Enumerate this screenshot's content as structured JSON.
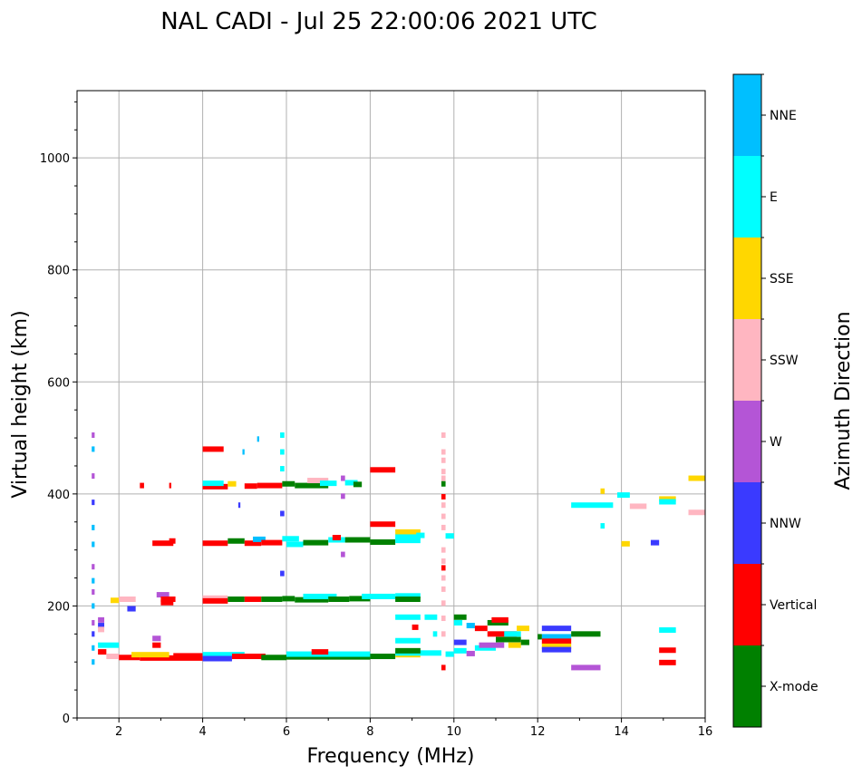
{
  "chart_data": {
    "type": "scatter",
    "title": "NAL CADI - Jul 25 22:00:06 2021 UTC",
    "xlabel": "Frequency (MHz)",
    "ylabel": "Virtual height (km)",
    "xlim": [
      1,
      16
    ],
    "ylim": [
      0,
      1120
    ],
    "xticks": [
      "2",
      "4",
      "6",
      "8",
      "10",
      "12",
      "14",
      "16"
    ],
    "yticks": [
      "0",
      "200",
      "400",
      "600",
      "800",
      "1000"
    ],
    "grid": true,
    "colorbar": {
      "label": "Azimuth Direction",
      "categories": [
        "X-mode",
        "Vertical",
        "NNW",
        "W",
        "SSW",
        "SSE",
        "E",
        "NNE"
      ],
      "colors": [
        "#008000",
        "#ff0000",
        "#3a3aff",
        "#b455d6",
        "#ffb6c1",
        "#ffd700",
        "#00ffff",
        "#00bfff"
      ]
    },
    "segments_note": "each echo: [freq_start_MHz, freq_end_MHz, virtual_height_km, category_index]",
    "echoes": [
      [
        4.0,
        4.5,
        480,
        1
      ],
      [
        4.0,
        4.6,
        413,
        1
      ],
      [
        4.0,
        4.5,
        419,
        6
      ],
      [
        4.6,
        4.8,
        418,
        5
      ],
      [
        5.0,
        5.3,
        414,
        1
      ],
      [
        5.3,
        5.9,
        415,
        1
      ],
      [
        5.9,
        6.2,
        418,
        0
      ],
      [
        6.2,
        7.0,
        415,
        0
      ],
      [
        6.5,
        7.0,
        424,
        4
      ],
      [
        6.8,
        7.2,
        419,
        6
      ],
      [
        7.4,
        7.7,
        420,
        6
      ],
      [
        7.6,
        7.8,
        417,
        0
      ],
      [
        8.0,
        8.6,
        443,
        1
      ],
      [
        2.5,
        2.6,
        415,
        1
      ],
      [
        3.2,
        3.25,
        415,
        1
      ],
      [
        2.8,
        3.3,
        312,
        1
      ],
      [
        3.2,
        3.35,
        316,
        1
      ],
      [
        4.0,
        4.6,
        312,
        1
      ],
      [
        4.6,
        5.0,
        316,
        0
      ],
      [
        5.0,
        5.4,
        312,
        1
      ],
      [
        5.2,
        5.5,
        319,
        7
      ],
      [
        5.4,
        5.9,
        313,
        1
      ],
      [
        5.9,
        6.3,
        320,
        6
      ],
      [
        6.0,
        6.4,
        310,
        6
      ],
      [
        6.4,
        7.0,
        313,
        0
      ],
      [
        7.0,
        7.4,
        318,
        6
      ],
      [
        7.1,
        7.3,
        322,
        1
      ],
      [
        7.4,
        8.0,
        318,
        0
      ],
      [
        8.0,
        8.6,
        314,
        0
      ],
      [
        8.0,
        8.6,
        346,
        1
      ],
      [
        8.6,
        9.2,
        332,
        5
      ],
      [
        8.6,
        9.2,
        323,
        6
      ],
      [
        8.6,
        9.2,
        317,
        6
      ],
      [
        9.1,
        9.3,
        326,
        6
      ],
      [
        9.8,
        10.0,
        325,
        6
      ],
      [
        1.8,
        2.0,
        210,
        5
      ],
      [
        2.0,
        2.4,
        212,
        4
      ],
      [
        2.9,
        3.2,
        220,
        3
      ],
      [
        3.0,
        3.35,
        212,
        1
      ],
      [
        3.0,
        3.3,
        206,
        1
      ],
      [
        4.0,
        4.6,
        214,
        4
      ],
      [
        4.0,
        4.6,
        209,
        1
      ],
      [
        4.6,
        5.0,
        212,
        0
      ],
      [
        5.0,
        5.4,
        212,
        1
      ],
      [
        5.4,
        5.9,
        212,
        0
      ],
      [
        5.9,
        6.2,
        213,
        0
      ],
      [
        6.2,
        7.0,
        211,
        0
      ],
      [
        6.4,
        7.2,
        217,
        6
      ],
      [
        7.0,
        7.5,
        212,
        0
      ],
      [
        7.5,
        8.0,
        213,
        0
      ],
      [
        7.8,
        8.6,
        217,
        6
      ],
      [
        8.6,
        9.2,
        218,
        6
      ],
      [
        8.6,
        9.2,
        212,
        0
      ],
      [
        1.5,
        2.0,
        130,
        6
      ],
      [
        1.5,
        1.65,
        175,
        3
      ],
      [
        1.5,
        1.65,
        165,
        2
      ],
      [
        1.5,
        1.65,
        158,
        4
      ],
      [
        2.2,
        2.4,
        195,
        2
      ],
      [
        2.8,
        3.0,
        142,
        3
      ],
      [
        2.8,
        3.0,
        130,
        1
      ],
      [
        1.5,
        1.7,
        118,
        1
      ],
      [
        1.7,
        2.0,
        110,
        4
      ],
      [
        2.0,
        2.5,
        108,
        1
      ],
      [
        2.5,
        4.0,
        107,
        1
      ],
      [
        3.3,
        4.0,
        111,
        1
      ],
      [
        2.3,
        3.2,
        113,
        5
      ],
      [
        4.0,
        5.0,
        113,
        6
      ],
      [
        4.0,
        4.7,
        106,
        2
      ],
      [
        4.7,
        5.5,
        110,
        1
      ],
      [
        5.4,
        6.0,
        108,
        0
      ],
      [
        6.0,
        8.0,
        109,
        0
      ],
      [
        6.0,
        8.0,
        114,
        6
      ],
      [
        6.6,
        7.0,
        118,
        1
      ],
      [
        8.0,
        8.6,
        110,
        0
      ],
      [
        8.6,
        9.2,
        113,
        5
      ],
      [
        8.6,
        9.7,
        116,
        6
      ],
      [
        8.6,
        9.2,
        120,
        0
      ],
      [
        9.8,
        10.0,
        114,
        6
      ],
      [
        9.3,
        9.6,
        180,
        6
      ],
      [
        8.6,
        9.2,
        180,
        6
      ],
      [
        9.0,
        9.15,
        162,
        1
      ],
      [
        8.6,
        9.2,
        138,
        6
      ],
      [
        9.5,
        9.6,
        150,
        6
      ],
      [
        10.0,
        10.3,
        180,
        0
      ],
      [
        10.0,
        10.2,
        170,
        6
      ],
      [
        10.3,
        10.5,
        165,
        7
      ],
      [
        10.5,
        10.8,
        160,
        1
      ],
      [
        10.8,
        11.3,
        170,
        0
      ],
      [
        10.9,
        11.3,
        175,
        1
      ],
      [
        10.8,
        11.5,
        150,
        1
      ],
      [
        11.0,
        11.6,
        140,
        0
      ],
      [
        10.5,
        11.0,
        125,
        6
      ],
      [
        10.6,
        11.2,
        130,
        3
      ],
      [
        11.2,
        11.6,
        150,
        6
      ],
      [
        11.3,
        11.6,
        130,
        5
      ],
      [
        10.0,
        10.3,
        135,
        2
      ],
      [
        10.0,
        10.3,
        120,
        6
      ],
      [
        10.3,
        10.5,
        115,
        3
      ],
      [
        11.6,
        11.8,
        135,
        0
      ],
      [
        11.5,
        11.8,
        160,
        5
      ],
      [
        12.1,
        12.8,
        160,
        2
      ],
      [
        12.1,
        12.8,
        145,
        7
      ],
      [
        12.1,
        12.8,
        137,
        1
      ],
      [
        12.1,
        12.8,
        128,
        5
      ],
      [
        12.1,
        12.8,
        122,
        2
      ],
      [
        12.0,
        12.1,
        145,
        0
      ],
      [
        12.8,
        13.5,
        150,
        0
      ],
      [
        12.8,
        13.5,
        90,
        3
      ],
      [
        12.8,
        13.8,
        380,
        6
      ],
      [
        13.9,
        14.2,
        398,
        6
      ],
      [
        14.2,
        14.6,
        378,
        4
      ],
      [
        14.0,
        14.2,
        311,
        5
      ],
      [
        14.7,
        14.9,
        313,
        2
      ],
      [
        14.9,
        15.3,
        391,
        5
      ],
      [
        14.9,
        15.3,
        386,
        6
      ],
      [
        15.6,
        16.0,
        428,
        5
      ],
      [
        15.6,
        16.0,
        367,
        4
      ],
      [
        13.5,
        13.6,
        405,
        5
      ],
      [
        13.5,
        13.6,
        343,
        6
      ],
      [
        14.9,
        15.3,
        157,
        6
      ],
      [
        14.9,
        15.3,
        121,
        1
      ],
      [
        14.9,
        15.3,
        99,
        1
      ],
      [
        9.7,
        9.8,
        505,
        4
      ],
      [
        9.7,
        9.8,
        475,
        4
      ],
      [
        9.7,
        9.8,
        460,
        4
      ],
      [
        9.7,
        9.8,
        440,
        4
      ],
      [
        9.7,
        9.8,
        428,
        4
      ],
      [
        9.7,
        9.8,
        418,
        0
      ],
      [
        9.7,
        9.8,
        395,
        1
      ],
      [
        9.7,
        9.8,
        380,
        4
      ],
      [
        9.7,
        9.8,
        360,
        4
      ],
      [
        9.7,
        9.8,
        340,
        4
      ],
      [
        9.7,
        9.8,
        300,
        4
      ],
      [
        9.7,
        9.8,
        280,
        4
      ],
      [
        9.7,
        9.8,
        268,
        1
      ],
      [
        9.7,
        9.8,
        250,
        4
      ],
      [
        9.7,
        9.8,
        230,
        4
      ],
      [
        9.7,
        9.8,
        205,
        4
      ],
      [
        9.7,
        9.8,
        178,
        4
      ],
      [
        9.7,
        9.8,
        150,
        4
      ],
      [
        9.7,
        9.8,
        90,
        1
      ],
      [
        1.35,
        1.42,
        505,
        3
      ],
      [
        1.35,
        1.42,
        480,
        7
      ],
      [
        1.35,
        1.42,
        432,
        3
      ],
      [
        1.35,
        1.42,
        385,
        2
      ],
      [
        1.35,
        1.42,
        340,
        7
      ],
      [
        1.35,
        1.42,
        310,
        7
      ],
      [
        1.35,
        1.42,
        270,
        3
      ],
      [
        1.35,
        1.42,
        245,
        7
      ],
      [
        1.35,
        1.42,
        225,
        3
      ],
      [
        1.35,
        1.42,
        200,
        7
      ],
      [
        1.35,
        1.42,
        170,
        3
      ],
      [
        1.35,
        1.42,
        150,
        2
      ],
      [
        1.35,
        1.42,
        125,
        7
      ],
      [
        1.35,
        1.42,
        100,
        7
      ],
      [
        5.85,
        5.95,
        505,
        6
      ],
      [
        5.85,
        5.95,
        475,
        6
      ],
      [
        5.85,
        5.95,
        445,
        6
      ],
      [
        5.85,
        5.95,
        365,
        2
      ],
      [
        5.85,
        5.95,
        258,
        2
      ],
      [
        5.3,
        5.35,
        498,
        7
      ],
      [
        4.95,
        5.0,
        475,
        7
      ],
      [
        4.85,
        4.9,
        380,
        2
      ],
      [
        7.3,
        7.4,
        428,
        3
      ],
      [
        7.3,
        7.4,
        396,
        3
      ],
      [
        7.3,
        7.4,
        292,
        3
      ]
    ]
  }
}
